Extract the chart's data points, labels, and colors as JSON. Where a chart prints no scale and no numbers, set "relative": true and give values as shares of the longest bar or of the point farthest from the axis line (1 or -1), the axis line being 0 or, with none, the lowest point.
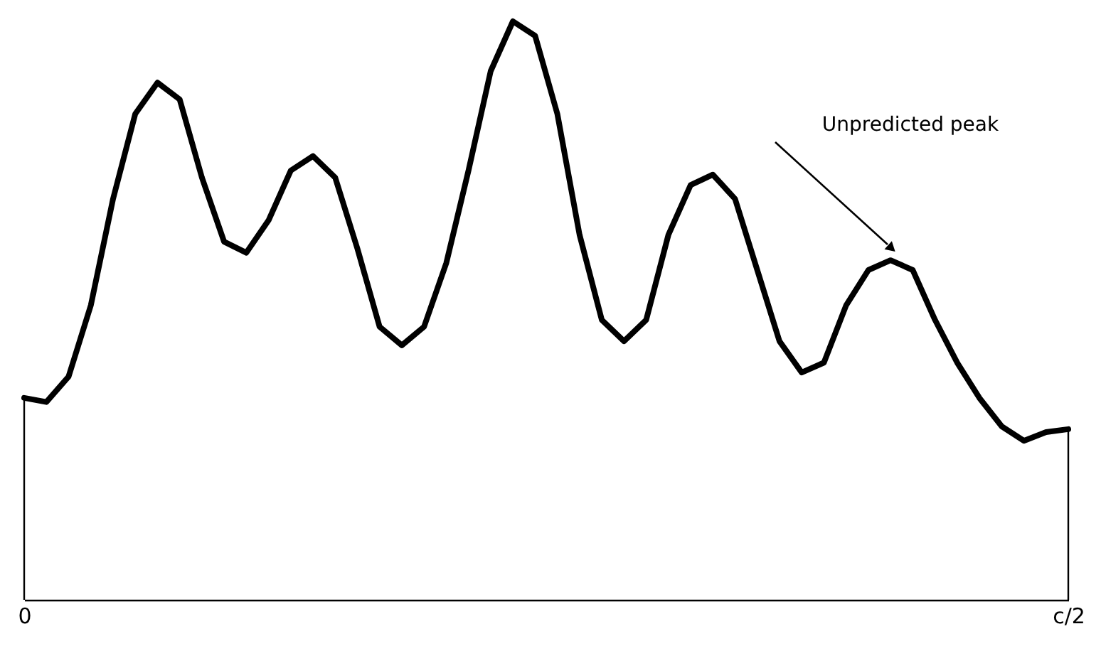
{
  "chart_data": {
    "type": "line",
    "relative": true,
    "color": "#000000",
    "categories": [
      "0",
      null,
      null,
      null,
      null,
      null,
      null,
      null,
      null,
      null,
      null,
      null,
      null,
      null,
      null,
      null,
      null,
      null,
      null,
      null,
      null,
      null,
      null,
      null,
      null,
      null,
      null,
      null,
      null,
      null,
      null,
      null,
      null,
      null,
      null,
      null,
      null,
      null,
      null,
      null,
      null,
      null,
      null,
      null,
      null,
      null,
      null,
      "c/2"
    ],
    "values": [
      0.349,
      0.342,
      0.386,
      0.509,
      0.693,
      0.84,
      0.894,
      0.865,
      0.73,
      0.619,
      0.6,
      0.656,
      0.742,
      0.767,
      0.73,
      0.607,
      0.472,
      0.44,
      0.472,
      0.582,
      0.742,
      0.914,
      1.0,
      0.975,
      0.84,
      0.631,
      0.484,
      0.447,
      0.484,
      0.631,
      0.717,
      0.735,
      0.693,
      0.57,
      0.447,
      0.393,
      0.41,
      0.509,
      0.57,
      0.587,
      0.57,
      0.484,
      0.41,
      0.349,
      0.3,
      0.275,
      0.29,
      0.295
    ],
    "grid": false,
    "annotations": [
      "Unpredicted peak"
    ]
  }
}
